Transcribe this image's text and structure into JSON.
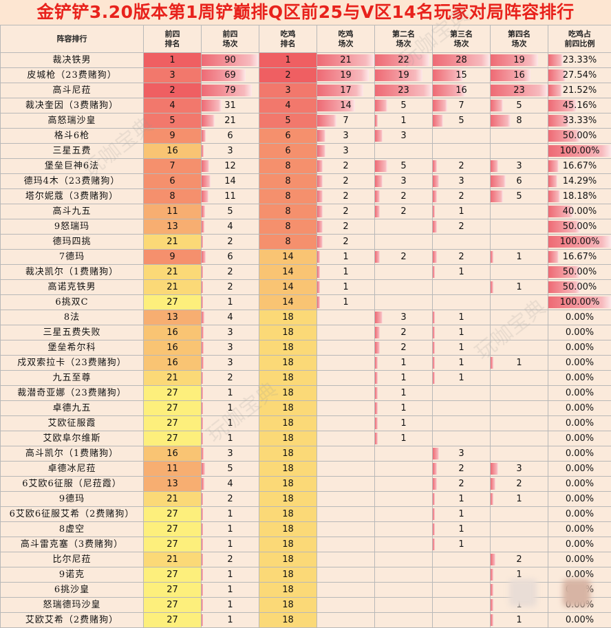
{
  "title": "金铲铲3.20版本第1周铲巅排Q区前25与V区14名玩家对局阵容排行",
  "watermark": "玩咖宝典",
  "columns": [
    "阵容排行",
    "前四\n排名",
    "前四\n场次",
    "吃鸡\n排名",
    "吃鸡\n场次",
    "第二名\n场次",
    "第三名\n场次",
    "第四名\n场次",
    "吃鸡占\n前四比例"
  ],
  "colors": {
    "rank_1": "#ef5f62",
    "rank_3_5": "#f2786c",
    "rank_6_9": "#f5906d",
    "rank_11_13": "#f7ae71",
    "rank_16": "#f9c473",
    "rank_21": "#fbd977",
    "rank_27": "#fdef7c",
    "bar": "#ee6a74",
    "header_bg": "#fbeadb",
    "title": "#e8221c"
  },
  "chart_data": {
    "type": "table",
    "title": "金铲铲3.20版本第1周铲巅排Q区前25与V区14名玩家对局阵容排行",
    "columns": [
      "阵容排行",
      "前四排名",
      "前四场次",
      "吃鸡排名",
      "吃鸡场次",
      "第二名场次",
      "第三名场次",
      "第四名场次",
      "吃鸡占前四比例"
    ],
    "rows": [
      [
        "裁决铁男",
        1,
        90,
        1,
        21,
        22,
        28,
        19,
        "23.33%"
      ],
      [
        "皮城枪（23费赌狗）",
        3,
        69,
        2,
        19,
        19,
        15,
        16,
        "27.54%"
      ],
      [
        "高斗尼菈",
        2,
        79,
        3,
        17,
        23,
        16,
        23,
        "21.52%"
      ],
      [
        "裁决奎因（3费赌狗）",
        4,
        31,
        4,
        14,
        5,
        7,
        5,
        "45.16%"
      ],
      [
        "高怒瑞沙皇",
        5,
        21,
        5,
        7,
        1,
        5,
        8,
        "33.33%"
      ],
      [
        "格斗6枪",
        9,
        6,
        6,
        3,
        3,
        "",
        "",
        "50.00%"
      ],
      [
        "三星五费",
        16,
        3,
        6,
        3,
        "",
        "",
        "",
        "100.00%"
      ],
      [
        "堡垒巨神6法",
        7,
        12,
        8,
        2,
        5,
        2,
        3,
        "16.67%"
      ],
      [
        "德玛4木（23费赌狗）",
        6,
        14,
        8,
        2,
        3,
        3,
        6,
        "14.29%"
      ],
      [
        "塔尔妮蔻（3费赌狗）",
        8,
        11,
        8,
        2,
        2,
        2,
        5,
        "18.18%"
      ],
      [
        "高斗九五",
        11,
        5,
        8,
        2,
        2,
        1,
        "",
        "40.00%"
      ],
      [
        "9怒瑞玛",
        13,
        4,
        8,
        2,
        "",
        2,
        "",
        "50.00%"
      ],
      [
        "德玛四挑",
        21,
        2,
        8,
        2,
        "",
        "",
        "",
        "100.00%"
      ],
      [
        "7德玛",
        9,
        6,
        14,
        1,
        2,
        2,
        1,
        "16.67%"
      ],
      [
        "裁决凯尔（1费赌狗）",
        21,
        2,
        14,
        1,
        "",
        1,
        "",
        "50.00%"
      ],
      [
        "高诺克铁男",
        21,
        2,
        14,
        1,
        "",
        "",
        1,
        "50.00%"
      ],
      [
        "6挑双C",
        27,
        1,
        14,
        1,
        "",
        "",
        "",
        "100.00%"
      ],
      [
        "8法",
        13,
        4,
        18,
        "",
        3,
        1,
        "",
        "0.00%"
      ],
      [
        "三星五费失败",
        16,
        3,
        18,
        "",
        2,
        1,
        "",
        "0.00%"
      ],
      [
        "堡垒希尔科",
        16,
        3,
        18,
        "",
        2,
        1,
        "",
        "0.00%"
      ],
      [
        "戍双索拉卡（23费赌狗）",
        16,
        3,
        18,
        "",
        1,
        1,
        1,
        "0.00%"
      ],
      [
        "九五至尊",
        21,
        2,
        18,
        "",
        1,
        1,
        "",
        "0.00%"
      ],
      [
        "裁潜奇亚娜（23费赌狗）",
        27,
        1,
        18,
        "",
        1,
        "",
        "",
        "0.00%"
      ],
      [
        "卓德九五",
        27,
        1,
        18,
        "",
        1,
        "",
        "",
        "0.00%"
      ],
      [
        "艾欧征服霞",
        27,
        1,
        18,
        "",
        1,
        "",
        "",
        "0.00%"
      ],
      [
        "艾欧阜尔维斯",
        27,
        1,
        18,
        "",
        1,
        "",
        "",
        "0.00%"
      ],
      [
        "高斗凯尔（1费赌狗）",
        16,
        3,
        18,
        "",
        "",
        3,
        "",
        "0.00%"
      ],
      [
        "卓德冰尼菈",
        11,
        5,
        18,
        "",
        "",
        2,
        3,
        "0.00%"
      ],
      [
        "6艾欧6征服（尼菈霞）",
        13,
        4,
        18,
        "",
        "",
        2,
        2,
        "0.00%"
      ],
      [
        "9德玛",
        21,
        2,
        18,
        "",
        "",
        1,
        1,
        "0.00%"
      ],
      [
        "6艾欧6征服艾希（2费赌狗）",
        27,
        1,
        18,
        "",
        "",
        1,
        "",
        "0.00%"
      ],
      [
        "8虚空",
        27,
        1,
        18,
        "",
        "",
        1,
        "",
        "0.00%"
      ],
      [
        "高斗雷克塞（3费赌狗）",
        27,
        1,
        18,
        "",
        "",
        1,
        "",
        "0.00%"
      ],
      [
        "比尔尼菈",
        21,
        2,
        18,
        "",
        "",
        "",
        2,
        "0.00%"
      ],
      [
        "9诺克",
        27,
        1,
        18,
        "",
        "",
        "",
        1,
        "0.00%"
      ],
      [
        "6挑沙皇",
        27,
        1,
        18,
        "",
        "",
        "",
        1,
        "0.00%"
      ],
      [
        "怒瑞德玛沙皇",
        27,
        1,
        18,
        "",
        "",
        "",
        1,
        "0.00%"
      ],
      [
        "艾欧艾希（2费赌狗）",
        27,
        1,
        18,
        "",
        "",
        "",
        1,
        "0.00%"
      ]
    ]
  }
}
